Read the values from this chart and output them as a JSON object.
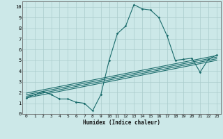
{
  "xlabel": "Humidex (Indice chaleur)",
  "ylabel": "",
  "bg_color": "#cce8e8",
  "grid_color": "#aacccc",
  "line_color": "#1a6b6b",
  "xlim": [
    -0.5,
    23.5
  ],
  "ylim": [
    0,
    10.5
  ],
  "xticks": [
    0,
    1,
    2,
    3,
    4,
    5,
    6,
    7,
    8,
    9,
    10,
    11,
    12,
    13,
    14,
    15,
    16,
    17,
    18,
    19,
    20,
    21,
    22,
    23
  ],
  "yticks": [
    0,
    1,
    2,
    3,
    4,
    5,
    6,
    7,
    8,
    9,
    10
  ],
  "main_x": [
    0,
    1,
    2,
    3,
    4,
    5,
    6,
    7,
    8,
    9,
    10,
    11,
    12,
    13,
    14,
    15,
    16,
    17,
    18,
    19,
    20,
    21,
    22,
    23
  ],
  "main_y": [
    1.5,
    1.8,
    2.1,
    1.8,
    1.4,
    1.4,
    1.1,
    1.0,
    0.3,
    1.8,
    5.0,
    7.5,
    8.2,
    10.2,
    9.8,
    9.7,
    9.0,
    7.3,
    5.0,
    5.1,
    5.2,
    3.9,
    5.1,
    5.5
  ],
  "trend1_x": [
    0,
    23
  ],
  "trend1_y": [
    1.5,
    5.0
  ],
  "trend2_x": [
    0,
    23
  ],
  "trend2_y": [
    1.65,
    5.15
  ],
  "trend3_x": [
    0,
    23
  ],
  "trend3_y": [
    1.8,
    5.3
  ],
  "trend4_x": [
    0,
    23
  ],
  "trend4_y": [
    1.95,
    5.45
  ]
}
